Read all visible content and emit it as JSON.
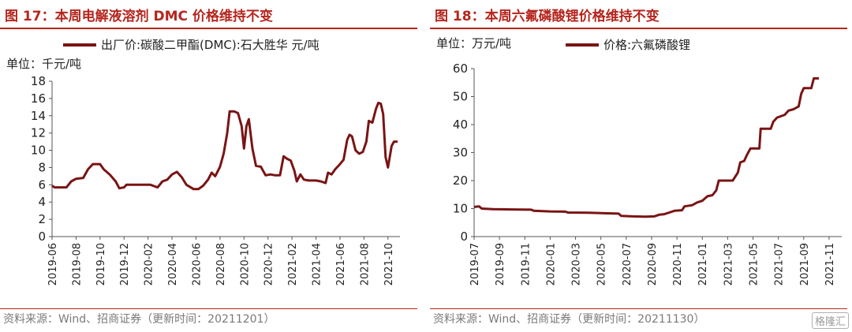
{
  "charts": [
    {
      "title": "图 17：本周电解液溶剂 DMC 价格维持不变",
      "unit": "单位：千元/吨",
      "source": "资料来源：Wind、招商证券（更新时间：20211201）",
      "legend": "出厂价:碳酸二甲酯(DMC):石大胜华 元/吨"
    },
    {
      "title": "图 18：本周六氟磷酸锂价格维持不变",
      "unit": "单位：万元/吨",
      "source": "资料来源：Wind、招商证券（更新时间：20211130）",
      "legend": "价格:六氟磷酸锂"
    }
  ],
  "watermark": "格隆汇",
  "line_color": "#7a1414",
  "title_color": "#b5261e",
  "chart_data": [
    {
      "type": "line",
      "title": "图 17：本周电解液溶剂 DMC 价格维持不变",
      "ylabel": "单位：千元/吨",
      "ylim": [
        0,
        18
      ],
      "yticks": [
        0,
        2,
        4,
        6,
        8,
        10,
        12,
        14,
        16,
        18
      ],
      "xlim": [
        0,
        29
      ],
      "xticks": [
        0,
        2,
        4,
        6,
        8,
        10,
        12,
        14,
        16,
        18,
        20,
        22,
        24,
        26,
        28
      ],
      "xtick_labels": [
        "2019-06",
        "2019-08",
        "2019-10",
        "2019-12",
        "2020-02",
        "2020-04",
        "2020-06",
        "2020-08",
        "2020-10",
        "2020-12",
        "2021-02",
        "2021-04",
        "2021-06",
        "2021-08",
        "2021-10"
      ],
      "grid": false,
      "legend_position": "top",
      "series": [
        {
          "name": "出厂价:碳酸二甲酯(DMC):石大胜华 元/吨",
          "points": [
            [
              0.0,
              5.9
            ],
            [
              0.2,
              5.7
            ],
            [
              1.2,
              5.7
            ],
            [
              1.6,
              6.4
            ],
            [
              2.0,
              6.7
            ],
            [
              2.6,
              6.8
            ],
            [
              3.0,
              7.8
            ],
            [
              3.4,
              8.4
            ],
            [
              4.0,
              8.4
            ],
            [
              4.3,
              7.8
            ],
            [
              4.8,
              7.2
            ],
            [
              5.3,
              6.4
            ],
            [
              5.6,
              5.6
            ],
            [
              6.0,
              5.7
            ],
            [
              6.2,
              6.0
            ],
            [
              7.0,
              6.0
            ],
            [
              7.8,
              6.0
            ],
            [
              8.2,
              6.0
            ],
            [
              8.8,
              5.7
            ],
            [
              9.2,
              6.4
            ],
            [
              9.6,
              6.6
            ],
            [
              10.0,
              7.2
            ],
            [
              10.4,
              7.5
            ],
            [
              10.8,
              6.9
            ],
            [
              11.2,
              6.0
            ],
            [
              11.8,
              5.5
            ],
            [
              12.2,
              5.5
            ],
            [
              12.6,
              5.9
            ],
            [
              13.0,
              6.6
            ],
            [
              13.3,
              7.4
            ],
            [
              13.6,
              7.0
            ],
            [
              14.0,
              8.1
            ],
            [
              14.3,
              9.6
            ],
            [
              14.6,
              12.0
            ],
            [
              14.8,
              14.5
            ],
            [
              15.2,
              14.5
            ],
            [
              15.5,
              14.3
            ],
            [
              15.8,
              12.8
            ],
            [
              16.0,
              10.2
            ],
            [
              16.2,
              12.8
            ],
            [
              16.4,
              13.6
            ],
            [
              16.7,
              10.2
            ],
            [
              17.0,
              8.2
            ],
            [
              17.4,
              8.1
            ],
            [
              17.8,
              7.1
            ],
            [
              18.2,
              7.2
            ],
            [
              18.6,
              7.1
            ],
            [
              19.0,
              7.1
            ],
            [
              19.3,
              9.3
            ],
            [
              19.6,
              9.0
            ],
            [
              19.9,
              8.8
            ],
            [
              20.2,
              7.6
            ],
            [
              20.4,
              6.4
            ],
            [
              20.7,
              7.2
            ],
            [
              21.0,
              6.6
            ],
            [
              21.4,
              6.5
            ],
            [
              22.0,
              6.5
            ],
            [
              22.4,
              6.4
            ],
            [
              22.8,
              6.2
            ],
            [
              23.0,
              7.4
            ],
            [
              23.3,
              7.2
            ],
            [
              23.6,
              7.8
            ],
            [
              24.0,
              8.4
            ],
            [
              24.3,
              8.9
            ],
            [
              24.6,
              11.2
            ],
            [
              24.8,
              11.8
            ],
            [
              25.0,
              11.6
            ],
            [
              25.3,
              10.0
            ],
            [
              25.6,
              9.6
            ],
            [
              25.9,
              9.8
            ],
            [
              26.2,
              11.0
            ],
            [
              26.4,
              13.4
            ],
            [
              26.7,
              13.2
            ],
            [
              27.0,
              14.8
            ],
            [
              27.2,
              15.5
            ],
            [
              27.4,
              15.4
            ],
            [
              27.6,
              14.2
            ],
            [
              27.8,
              9.2
            ],
            [
              28.0,
              8.0
            ],
            [
              28.3,
              10.5
            ],
            [
              28.5,
              11.0
            ],
            [
              28.8,
              11.0
            ]
          ]
        }
      ]
    },
    {
      "type": "line",
      "title": "图 18：本周六氟磷酸锂价格维持不变",
      "ylabel": "单位：万元/吨",
      "ylim": [
        0,
        60
      ],
      "yticks": [
        0,
        10,
        20,
        30,
        40,
        50,
        60
      ],
      "xlim": [
        0,
        29
      ],
      "xticks": [
        0,
        2,
        4,
        6,
        8,
        10,
        12,
        14,
        16,
        18,
        20,
        22,
        24,
        26,
        28
      ],
      "xtick_labels": [
        "2019-07",
        "2019-09",
        "2019-11",
        "2020-01",
        "2020-03",
        "2020-05",
        "2020-07",
        "2020-09",
        "2020-11",
        "2021-01",
        "2021-03",
        "2021-05",
        "2021-07",
        "2021-09",
        "2021-11"
      ],
      "grid": false,
      "legend_position": "top",
      "series": [
        {
          "name": "价格:六氟磷酸锂",
          "points": [
            [
              0.0,
              10.6
            ],
            [
              0.4,
              10.8
            ],
            [
              0.6,
              10.0
            ],
            [
              1.5,
              9.8
            ],
            [
              3.0,
              9.7
            ],
            [
              4.5,
              9.6
            ],
            [
              4.7,
              9.2
            ],
            [
              6.0,
              9.0
            ],
            [
              7.2,
              8.9
            ],
            [
              7.4,
              8.6
            ],
            [
              9.0,
              8.5
            ],
            [
              10.5,
              8.3
            ],
            [
              11.4,
              8.2
            ],
            [
              11.6,
              7.4
            ],
            [
              12.5,
              7.2
            ],
            [
              13.5,
              7.1
            ],
            [
              14.2,
              7.2
            ],
            [
              14.6,
              7.8
            ],
            [
              15.0,
              8.0
            ],
            [
              15.4,
              8.6
            ],
            [
              15.8,
              9.2
            ],
            [
              16.4,
              9.4
            ],
            [
              16.6,
              10.8
            ],
            [
              17.2,
              11.2
            ],
            [
              17.6,
              12.2
            ],
            [
              18.0,
              12.8
            ],
            [
              18.4,
              14.4
            ],
            [
              18.8,
              14.8
            ],
            [
              19.1,
              16.5
            ],
            [
              19.3,
              20.0
            ],
            [
              20.4,
              20.0
            ],
            [
              20.8,
              22.8
            ],
            [
              21.0,
              26.5
            ],
            [
              21.3,
              27.0
            ],
            [
              21.5,
              29.0
            ],
            [
              21.8,
              31.5
            ],
            [
              22.5,
              31.5
            ],
            [
              22.6,
              38.5
            ],
            [
              23.4,
              38.5
            ],
            [
              23.6,
              41.0
            ],
            [
              23.9,
              42.5
            ],
            [
              24.5,
              43.5
            ],
            [
              24.8,
              45.0
            ],
            [
              25.2,
              45.5
            ],
            [
              25.6,
              46.5
            ],
            [
              25.8,
              51.0
            ],
            [
              26.0,
              53.0
            ],
            [
              26.6,
              53.0
            ],
            [
              26.8,
              56.5
            ],
            [
              27.2,
              56.5
            ]
          ]
        }
      ]
    }
  ]
}
